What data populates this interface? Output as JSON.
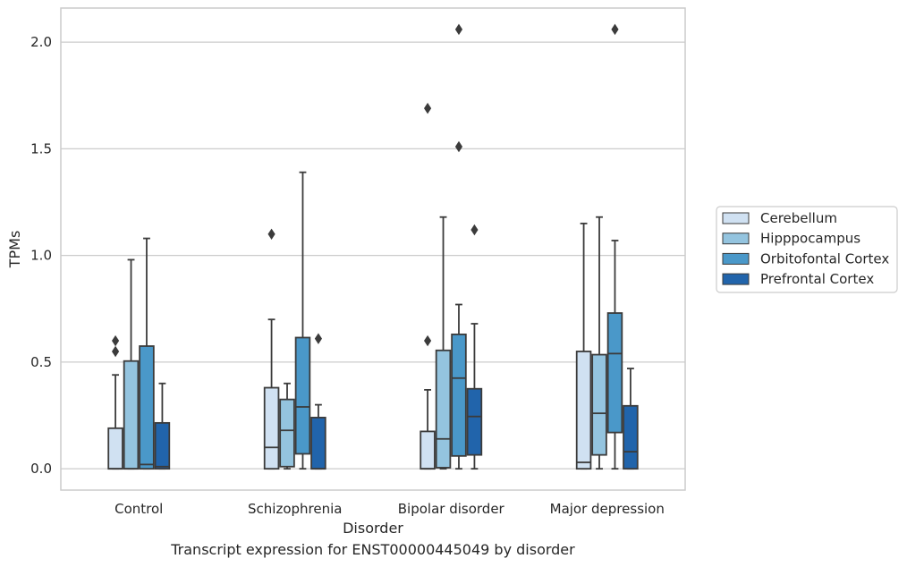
{
  "caption": "Transcript expression for ENST00000445049 by disorder",
  "chart_data": {
    "type": "boxplot",
    "xlabel": "Disorder",
    "ylabel": "TPMs",
    "ylim": [
      -0.1,
      2.16
    ],
    "yticks": [
      0.0,
      0.5,
      1.0,
      1.5,
      2.0
    ],
    "ytick_labels": [
      "0.0",
      "0.5",
      "1.0",
      "1.5",
      "2.0"
    ],
    "grid": true,
    "legend_position": "right",
    "categories": [
      "Control",
      "Schizophrenia",
      "Bipolar disorder",
      "Major depression"
    ],
    "series": [
      {
        "name": "Cerebellum",
        "color": "#d0e1f2",
        "boxes": [
          {
            "whislo": 0.0,
            "q1": 0.0,
            "med": 0.0,
            "q3": 0.19,
            "whishi": 0.44,
            "fliers": [
              0.55,
              0.6
            ]
          },
          {
            "whislo": 0.0,
            "q1": 0.0,
            "med": 0.1,
            "q3": 0.38,
            "whishi": 0.7,
            "fliers": [
              1.1
            ]
          },
          {
            "whislo": 0.0,
            "q1": 0.0,
            "med": 0.0,
            "q3": 0.175,
            "whishi": 0.37,
            "fliers": [
              0.6,
              1.69
            ]
          },
          {
            "whislo": 0.0,
            "q1": 0.0,
            "med": 0.03,
            "q3": 0.55,
            "whishi": 1.15,
            "fliers": []
          }
        ]
      },
      {
        "name": "Hipppocampus",
        "color": "#94c4df",
        "boxes": [
          {
            "whislo": 0.0,
            "q1": 0.0,
            "med": 0.0,
            "q3": 0.505,
            "whishi": 0.98,
            "fliers": []
          },
          {
            "whislo": 0.0,
            "q1": 0.01,
            "med": 0.18,
            "q3": 0.325,
            "whishi": 0.4,
            "fliers": []
          },
          {
            "whislo": 0.0,
            "q1": 0.005,
            "med": 0.14,
            "q3": 0.555,
            "whishi": 1.18,
            "fliers": []
          },
          {
            "whislo": 0.0,
            "q1": 0.065,
            "med": 0.26,
            "q3": 0.535,
            "whishi": 1.18,
            "fliers": []
          }
        ]
      },
      {
        "name": "Orbitofontal Cortex",
        "color": "#4a98c9",
        "boxes": [
          {
            "whislo": 0.0,
            "q1": 0.0,
            "med": 0.02,
            "q3": 0.575,
            "whishi": 1.08,
            "fliers": []
          },
          {
            "whislo": 0.0,
            "q1": 0.07,
            "med": 0.29,
            "q3": 0.615,
            "whishi": 1.39,
            "fliers": []
          },
          {
            "whislo": 0.0,
            "q1": 0.06,
            "med": 0.425,
            "q3": 0.63,
            "whishi": 0.77,
            "fliers": [
              1.51,
              2.06
            ]
          },
          {
            "whislo": 0.0,
            "q1": 0.17,
            "med": 0.54,
            "q3": 0.73,
            "whishi": 1.07,
            "fliers": [
              2.06
            ]
          }
        ]
      },
      {
        "name": "Prefrontal Cortex",
        "color": "#2164ab",
        "boxes": [
          {
            "whislo": 0.0,
            "q1": 0.0,
            "med": 0.01,
            "q3": 0.215,
            "whishi": 0.4,
            "fliers": []
          },
          {
            "whislo": 0.0,
            "q1": 0.0,
            "med": 0.0,
            "q3": 0.24,
            "whishi": 0.3,
            "fliers": [
              0.61
            ]
          },
          {
            "whislo": 0.0,
            "q1": 0.065,
            "med": 0.245,
            "q3": 0.375,
            "whishi": 0.68,
            "fliers": [
              1.12
            ]
          },
          {
            "whislo": 0.0,
            "q1": 0.0,
            "med": 0.08,
            "q3": 0.295,
            "whishi": 0.47,
            "fliers": []
          }
        ]
      }
    ]
  }
}
